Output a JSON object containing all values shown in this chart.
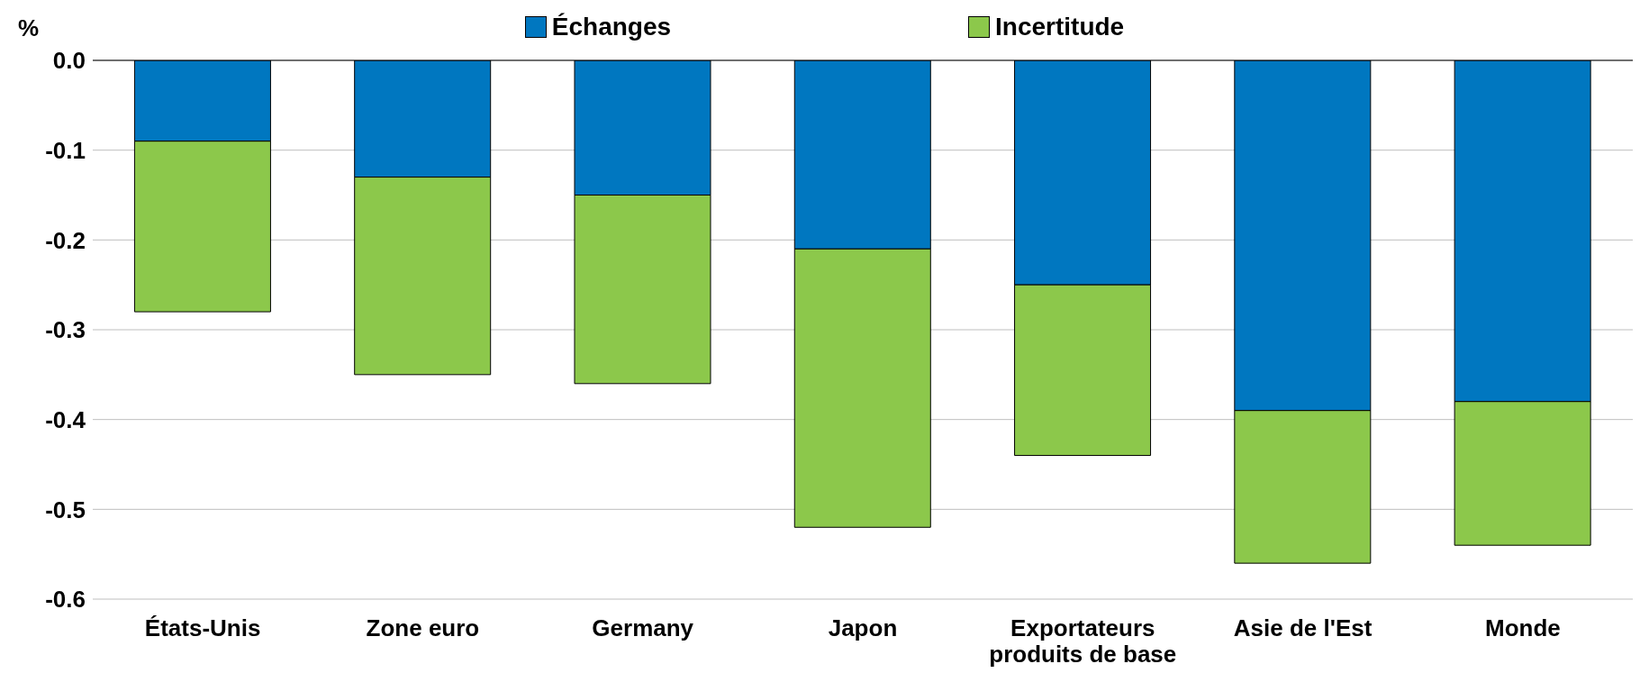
{
  "chart_data": {
    "type": "bar",
    "stacked": true,
    "ylabel": "%",
    "categories": [
      "États-Unis",
      "Zone euro",
      "Germany",
      "Japon",
      "Exportateurs produits de base",
      "Asie de l'Est",
      "Monde"
    ],
    "series": [
      {
        "name": "Échanges",
        "color": "#0077c0",
        "values": [
          -0.09,
          -0.13,
          -0.15,
          -0.21,
          -0.25,
          -0.39,
          -0.38
        ]
      },
      {
        "name": "Incertitude",
        "color": "#8cc84b",
        "values": [
          -0.19,
          -0.22,
          -0.21,
          -0.31,
          -0.19,
          -0.17,
          -0.16
        ]
      }
    ],
    "ylim": [
      -0.6,
      0
    ],
    "yticks": [
      {
        "value": 0,
        "label": "0.0"
      },
      -0.1,
      -0.2,
      -0.3,
      -0.4,
      -0.5,
      -0.6
    ],
    "grid": "y",
    "legend": "top"
  }
}
